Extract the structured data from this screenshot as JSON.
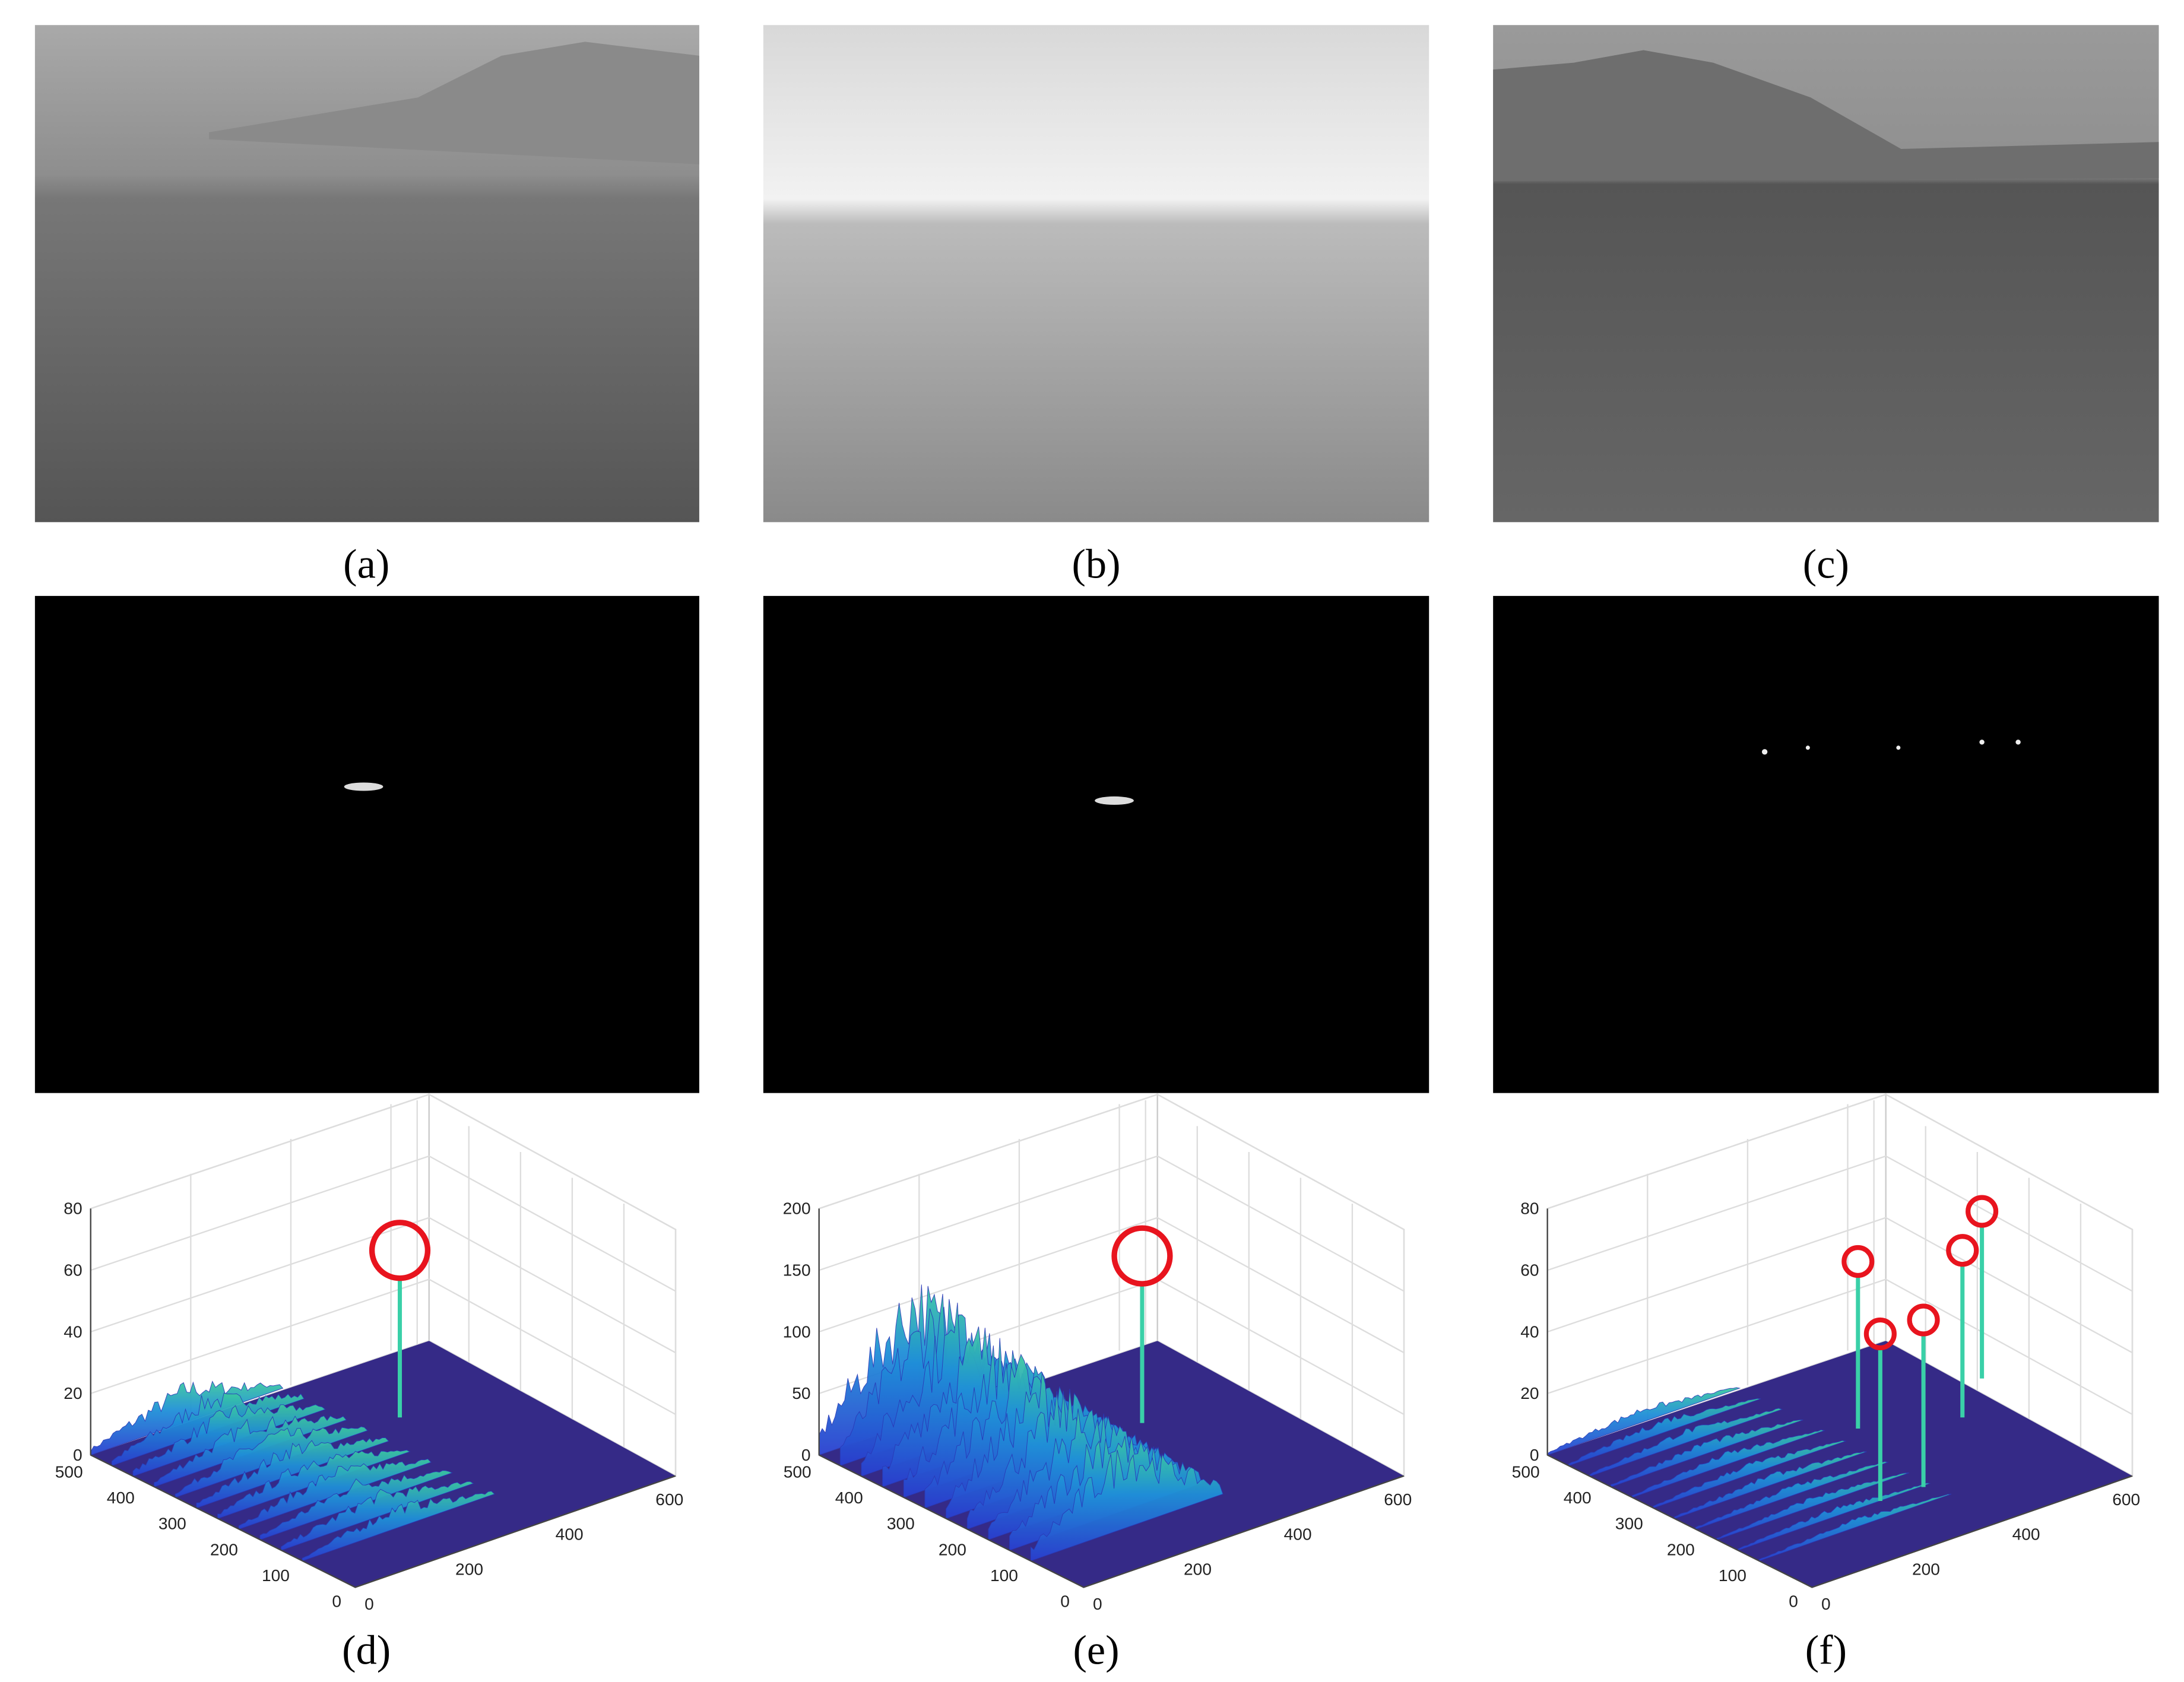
{
  "panels": [
    {
      "caption": "(a)"
    },
    {
      "caption": "(b)"
    },
    {
      "caption": "(c)"
    },
    {
      "caption": "(d)"
    },
    {
      "caption": "(e)"
    },
    {
      "caption": "(f)"
    }
  ],
  "plots": [
    {
      "zlim": [
        0,
        80
      ],
      "zticks": [
        0,
        20,
        40,
        60,
        80
      ],
      "ylim": [
        0,
        512
      ],
      "yticks": [
        0,
        100,
        200,
        300,
        400,
        500
      ],
      "xlim": [
        0,
        640
      ],
      "xticks": [
        0,
        200,
        400,
        600
      ]
    },
    {
      "zlim": [
        0,
        200
      ],
      "zticks": [
        0,
        50,
        100,
        150,
        200
      ],
      "ylim": [
        0,
        512
      ],
      "yticks": [
        0,
        100,
        200,
        300,
        400,
        500
      ],
      "xlim": [
        0,
        640
      ],
      "xticks": [
        0,
        200,
        400,
        600
      ]
    },
    {
      "zlim": [
        0,
        80
      ],
      "zticks": [
        0,
        20,
        40,
        60,
        80
      ],
      "ylim": [
        0,
        512
      ],
      "yticks": [
        0,
        100,
        200,
        300,
        400,
        500
      ],
      "xlim": [
        0,
        640
      ],
      "xticks": [
        0,
        200,
        400,
        600
      ]
    }
  ]
}
